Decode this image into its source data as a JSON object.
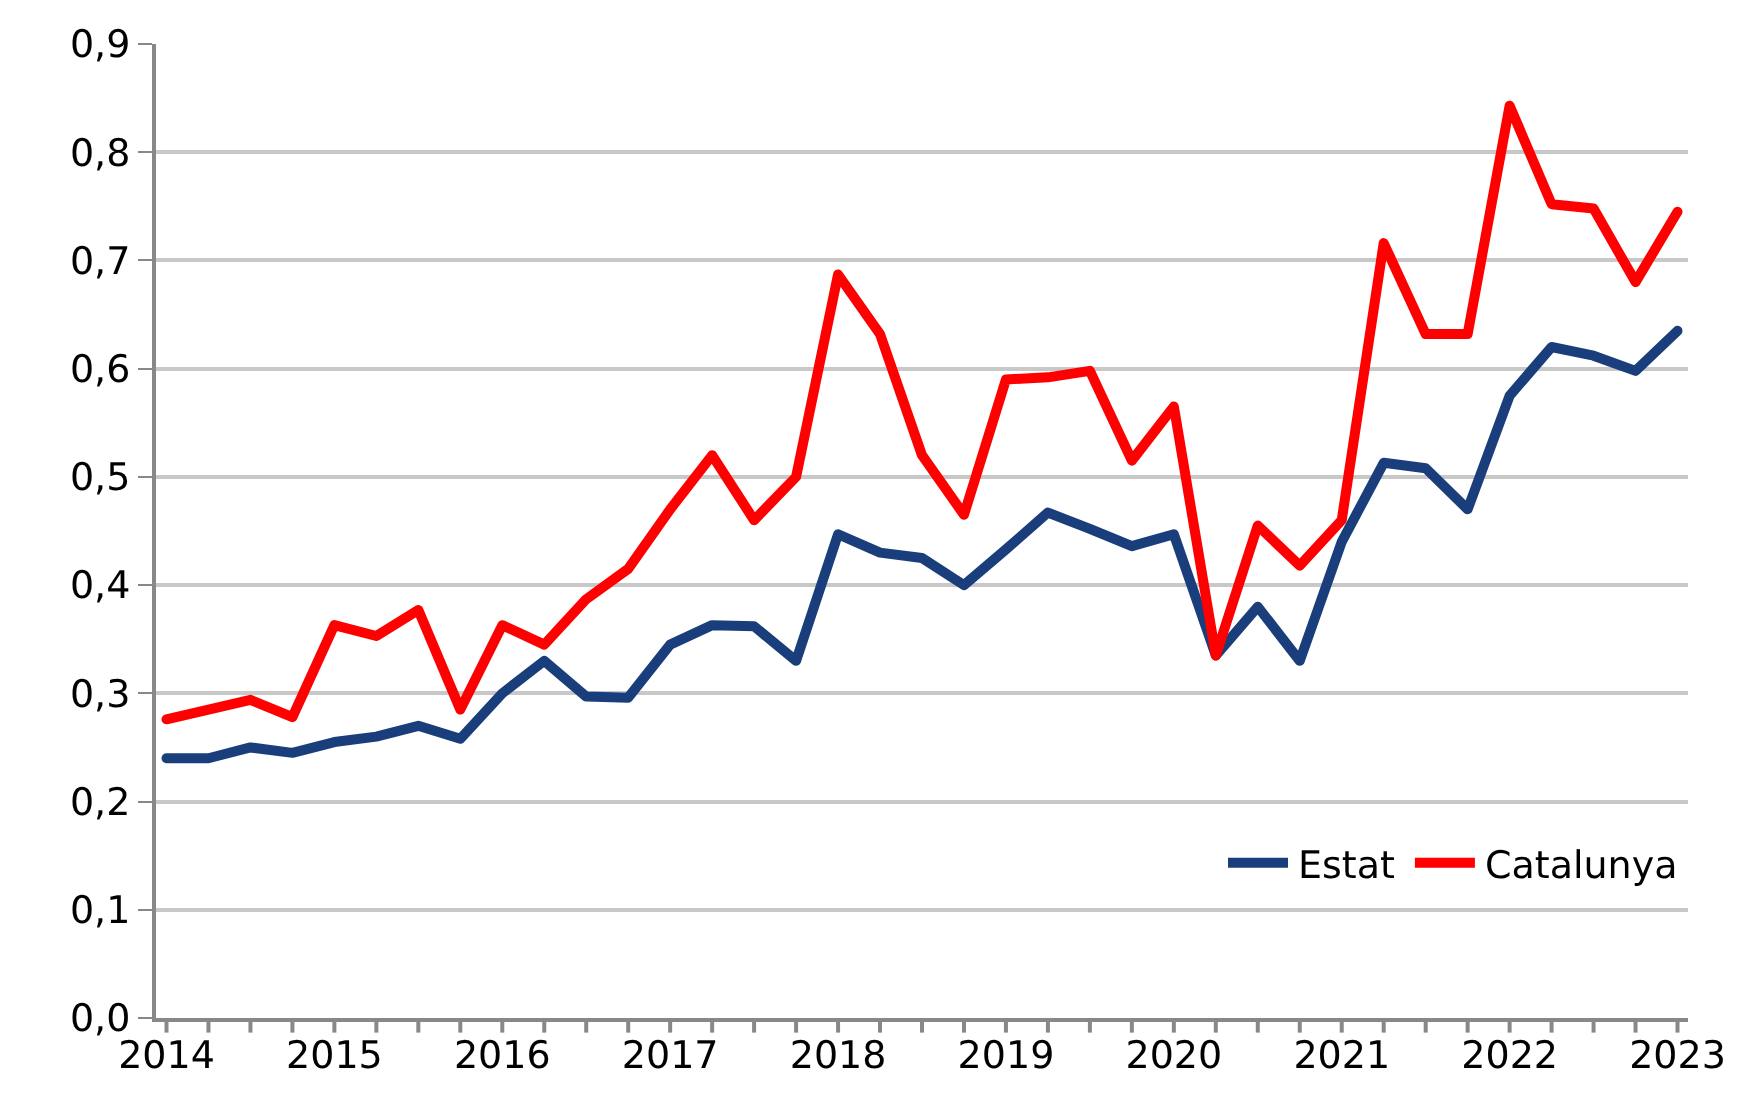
{
  "chart_data": {
    "type": "line",
    "categories": [
      "2014",
      null,
      null,
      null,
      "2015",
      null,
      null,
      null,
      "2016",
      null,
      null,
      null,
      "2017",
      null,
      null,
      null,
      "2018",
      null,
      null,
      null,
      "2019",
      null,
      null,
      null,
      "2020",
      null,
      null,
      null,
      "2021",
      null,
      null,
      null,
      "2022",
      null,
      null,
      null,
      "2023"
    ],
    "series": [
      {
        "name": "Estat",
        "color": "#1a3e7c",
        "values": [
          0.24,
          0.24,
          0.25,
          0.245,
          0.255,
          0.26,
          0.27,
          0.258,
          0.3,
          0.33,
          0.297,
          0.296,
          0.345,
          0.363,
          0.362,
          0.33,
          0.447,
          0.43,
          0.425,
          0.4,
          0.433,
          0.467,
          0.452,
          0.436,
          0.447,
          0.335,
          0.38,
          0.33,
          0.44,
          0.513,
          0.508,
          0.47,
          0.575,
          0.62,
          0.612,
          0.598,
          0.635
        ]
      },
      {
        "name": "Catalunya",
        "color": "#ff0000",
        "values": [
          0.276,
          0.285,
          0.294,
          0.278,
          0.363,
          0.353,
          0.377,
          0.285,
          0.363,
          0.345,
          0.387,
          0.415,
          0.47,
          0.52,
          0.46,
          0.5,
          0.687,
          0.632,
          0.52,
          0.465,
          0.59,
          0.592,
          0.598,
          0.515,
          0.565,
          0.335,
          0.455,
          0.418,
          0.46,
          0.716,
          0.632,
          0.632,
          0.843,
          0.752,
          0.748,
          0.68,
          0.745
        ]
      }
    ],
    "ylim": [
      0,
      0.9
    ],
    "yticks": [
      {
        "value": 0,
        "label": "0,0"
      },
      {
        "value": 0.1,
        "label": "0,1"
      },
      {
        "value": 0.2,
        "label": "0,2"
      },
      {
        "value": 0.3,
        "label": "0,3"
      },
      {
        "value": 0.4,
        "label": "0,4"
      },
      {
        "value": 0.5,
        "label": "0,5"
      },
      {
        "value": 0.6,
        "label": "0,6"
      },
      {
        "value": 0.7,
        "label": "0,7"
      },
      {
        "value": 0.8,
        "label": "0,8"
      },
      {
        "value": 0.9,
        "label": "0,9"
      }
    ],
    "grid": "y",
    "legend": "bottom right",
    "marker": "none",
    "line_style": "solid"
  }
}
